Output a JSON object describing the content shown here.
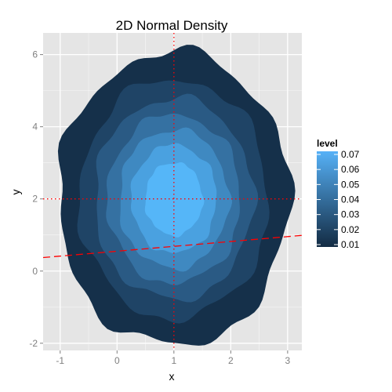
{
  "chart_data": {
    "type": "contour",
    "title": "2D Normal Density",
    "xlabel": "x",
    "ylabel": "y",
    "xlim": [
      -1.3,
      3.25
    ],
    "ylim": [
      -2.2,
      6.6
    ],
    "x_ticks": [
      -1,
      0,
      1,
      2,
      3
    ],
    "y_ticks": [
      -2,
      0,
      2,
      4,
      6
    ],
    "x_tick_labels": [
      "-1",
      "0",
      "1",
      "2",
      "3"
    ],
    "y_tick_labels": [
      "-2",
      "0",
      "2",
      "4",
      "6"
    ],
    "grid": true,
    "density": {
      "mean_x": 1.0,
      "mean_y": 2.0,
      "sd_x": 1.0,
      "sd_y": 2.0
    },
    "levels": [
      0.01,
      0.02,
      0.03,
      0.04,
      0.05,
      0.06,
      0.07
    ],
    "level_colors": [
      "#15304a",
      "#1f4466",
      "#2a5a84",
      "#3571a2",
      "#3f89c1",
      "#4aa1e0",
      "#55b6f8"
    ],
    "reference_lines": [
      {
        "kind": "vertical",
        "x": 1,
        "style": "dotted",
        "color": "#ff0000"
      },
      {
        "kind": "horizontal",
        "y": 2,
        "style": "dotted",
        "color": "#ff0000"
      },
      {
        "kind": "line",
        "intercept": 0.55,
        "slope": 0.135,
        "style": "dashed",
        "color": "#ff0000"
      }
    ],
    "legend": {
      "title": "level",
      "position": "right",
      "labels": [
        "0.07",
        "0.06",
        "0.05",
        "0.04",
        "0.03",
        "0.02",
        "0.01"
      ]
    },
    "panel_background": "#e5e5e5",
    "grid_color": "#ffffff"
  }
}
